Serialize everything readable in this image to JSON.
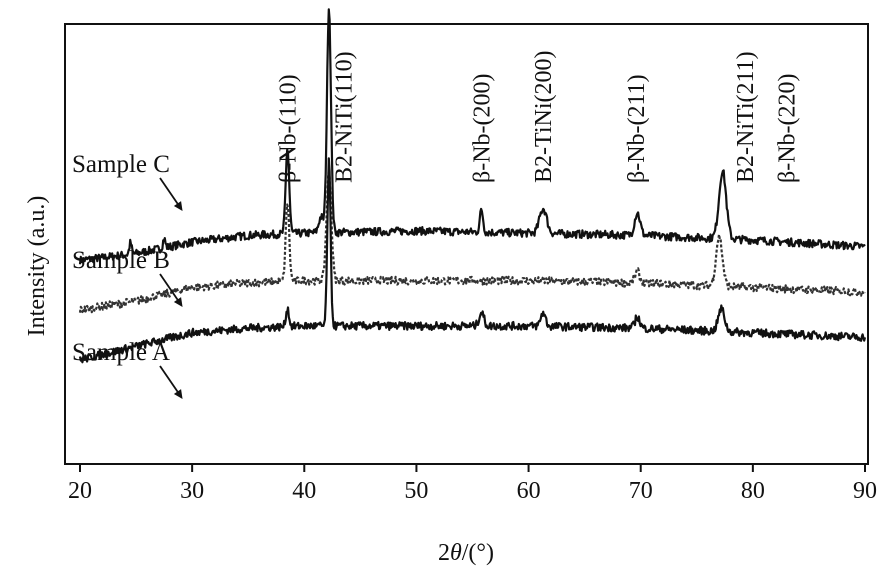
{
  "chart_data": {
    "type": "line",
    "xlabel_prefix": "2",
    "xlabel_var": "θ",
    "xlabel_suffix": "/(°)",
    "ylabel": "Intensity (a.u.)",
    "xlim": [
      20,
      90
    ],
    "xticks": [
      20,
      30,
      40,
      50,
      60,
      70,
      80,
      90
    ],
    "grid": false,
    "peak_labels": [
      {
        "text": "β-Nb-(110)",
        "x": 38.5
      },
      {
        "text": "B2-NiTi(110)",
        "x": 43.5
      },
      {
        "text": "β-Nb-(200)",
        "x": 55.8
      },
      {
        "text": "B2-TiNi(200)",
        "x": 61.3
      },
      {
        "text": "β-Nb-(211)",
        "x": 69.6
      },
      {
        "text": "B2-NiTi(211)",
        "x": 79.3
      },
      {
        "text": "β-Nb-(220)",
        "x": 83.0
      }
    ],
    "series": [
      {
        "name": "Sample C",
        "style": "solid",
        "annotation_arrow_x": 29.2,
        "baseline": [
          [
            20,
            0.86
          ],
          [
            25,
            0.89
          ],
          [
            30,
            0.94
          ],
          [
            35,
            0.97
          ],
          [
            40,
            0.98
          ],
          [
            50,
            0.99
          ],
          [
            60,
            0.98
          ],
          [
            70,
            0.97
          ],
          [
            80,
            0.95
          ],
          [
            90,
            0.92
          ]
        ],
        "peaks": [
          {
            "x": 24.5,
            "h": 0.05,
            "w": 0.15
          },
          {
            "x": 27.5,
            "h": 0.04,
            "w": 0.15
          },
          {
            "x": 38.5,
            "h": 0.38,
            "w": 0.22
          },
          {
            "x": 41.5,
            "h": 0.07,
            "w": 0.3
          },
          {
            "x": 42.2,
            "h": 1.0,
            "w": 0.25
          },
          {
            "x": 55.8,
            "h": 0.1,
            "w": 0.2
          },
          {
            "x": 61.3,
            "h": 0.11,
            "w": 0.45
          },
          {
            "x": 69.7,
            "h": 0.1,
            "w": 0.35
          },
          {
            "x": 77.3,
            "h": 0.3,
            "w": 0.45
          }
        ]
      },
      {
        "name": "Sample B",
        "style": "dotted",
        "annotation_arrow_x": 29.2,
        "baseline": [
          [
            20,
            0.64
          ],
          [
            25,
            0.68
          ],
          [
            30,
            0.74
          ],
          [
            35,
            0.76
          ],
          [
            40,
            0.77
          ],
          [
            50,
            0.77
          ],
          [
            60,
            0.77
          ],
          [
            70,
            0.76
          ],
          [
            80,
            0.74
          ],
          [
            90,
            0.72
          ]
        ],
        "peaks": [
          {
            "x": 38.5,
            "h": 0.35,
            "w": 0.22
          },
          {
            "x": 42.2,
            "h": 0.48,
            "w": 0.3
          },
          {
            "x": 69.7,
            "h": 0.05,
            "w": 0.3
          },
          {
            "x": 77.0,
            "h": 0.22,
            "w": 0.4
          }
        ]
      },
      {
        "name": "Sample A",
        "style": "solid",
        "annotation_arrow_x": 29.2,
        "baseline": [
          [
            20,
            0.42
          ],
          [
            25,
            0.48
          ],
          [
            30,
            0.54
          ],
          [
            35,
            0.56
          ],
          [
            40,
            0.57
          ],
          [
            50,
            0.57
          ],
          [
            60,
            0.57
          ],
          [
            70,
            0.56
          ],
          [
            80,
            0.54
          ],
          [
            90,
            0.52
          ]
        ],
        "peaks": [
          {
            "x": 38.5,
            "h": 0.08,
            "w": 0.2
          },
          {
            "x": 42.2,
            "h": 0.73,
            "w": 0.2
          },
          {
            "x": 55.8,
            "h": 0.06,
            "w": 0.3
          },
          {
            "x": 61.3,
            "h": 0.06,
            "w": 0.3
          },
          {
            "x": 69.7,
            "h": 0.05,
            "w": 0.3
          },
          {
            "x": 77.2,
            "h": 0.1,
            "w": 0.4
          }
        ]
      }
    ]
  }
}
